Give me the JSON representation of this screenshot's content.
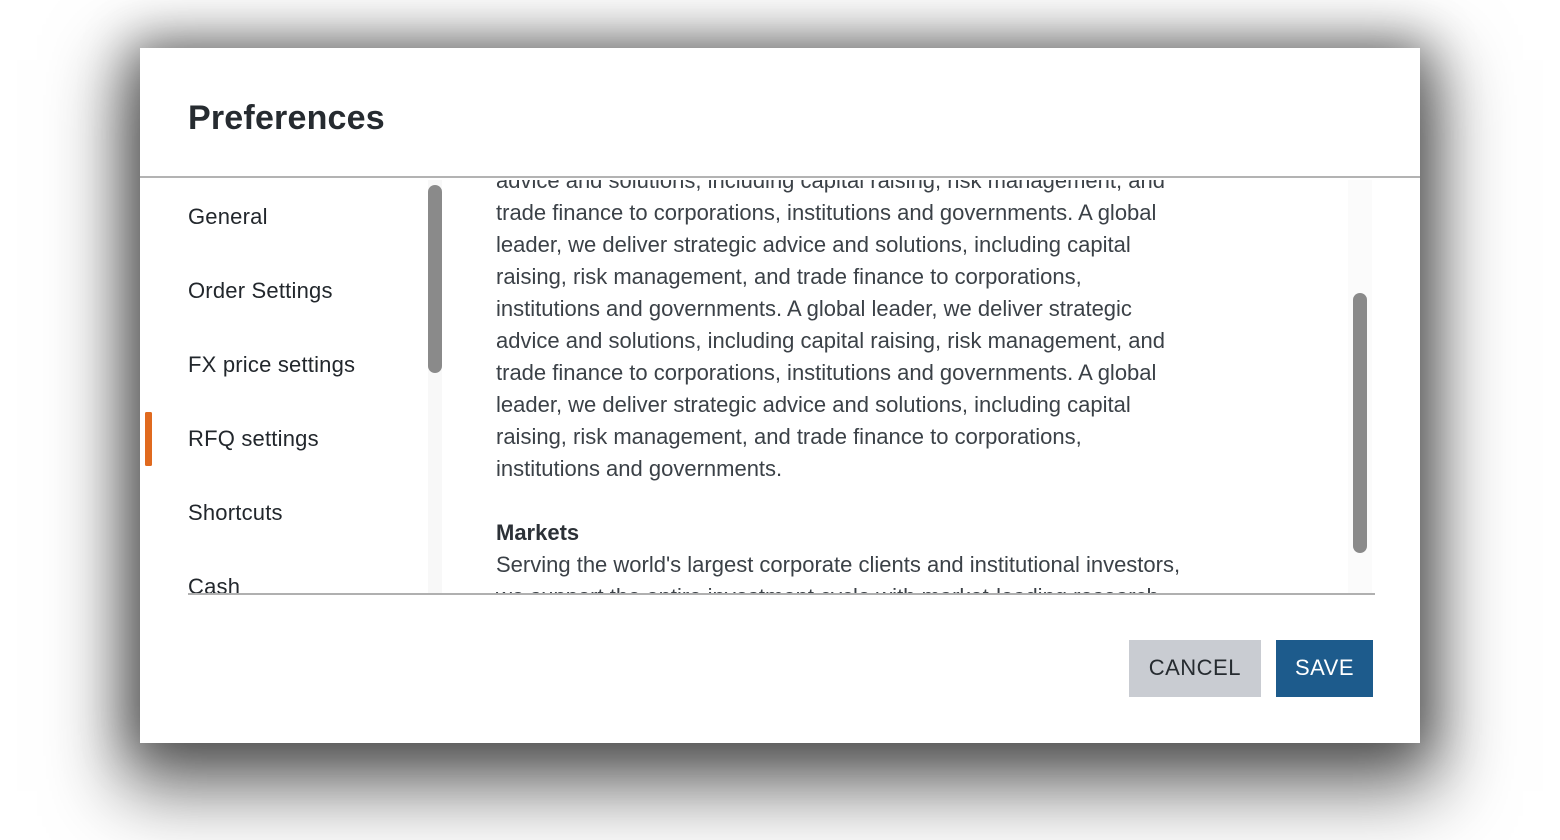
{
  "modal": {
    "title": "Preferences",
    "sidebar": {
      "items": [
        {
          "label": "General",
          "active": false
        },
        {
          "label": "Order Settings",
          "active": false
        },
        {
          "label": "FX price settings",
          "active": false
        },
        {
          "label": "RFQ settings",
          "active": true
        },
        {
          "label": "Shortcuts",
          "active": false
        },
        {
          "label": "Cash",
          "active": false,
          "clipped": true
        }
      ]
    },
    "content": {
      "paragraph_lines": [
        "advice and solutions, including capital raising, risk management, and",
        "trade finance to corporations, institutions and governments. A global",
        "leader, we deliver strategic advice and solutions, including capital",
        "raising, risk management, and trade finance to corporations,",
        "institutions and governments. A global leader, we deliver strategic",
        "advice and solutions, including capital raising, risk management, and",
        "trade finance to corporations, institutions and governments. A global",
        "leader, we deliver strategic advice and solutions, including capital",
        "raising, risk management, and trade finance to corporations,",
        "institutions and governments."
      ],
      "markets": {
        "heading": "Markets",
        "lines": [
          "Serving the world's largest corporate clients and institutional investors,",
          "we support the entire investment cycle with market-leading research,"
        ]
      }
    },
    "footer": {
      "cancel_label": "CANCEL",
      "save_label": "SAVE"
    }
  },
  "colors": {
    "accent_orange": "#e06a1f",
    "save_blue": "#1d5b8c",
    "cancel_gray": "#c9ccd2",
    "scrollbar_thumb": "#8a8a8a",
    "divider": "#b3b3b3"
  }
}
